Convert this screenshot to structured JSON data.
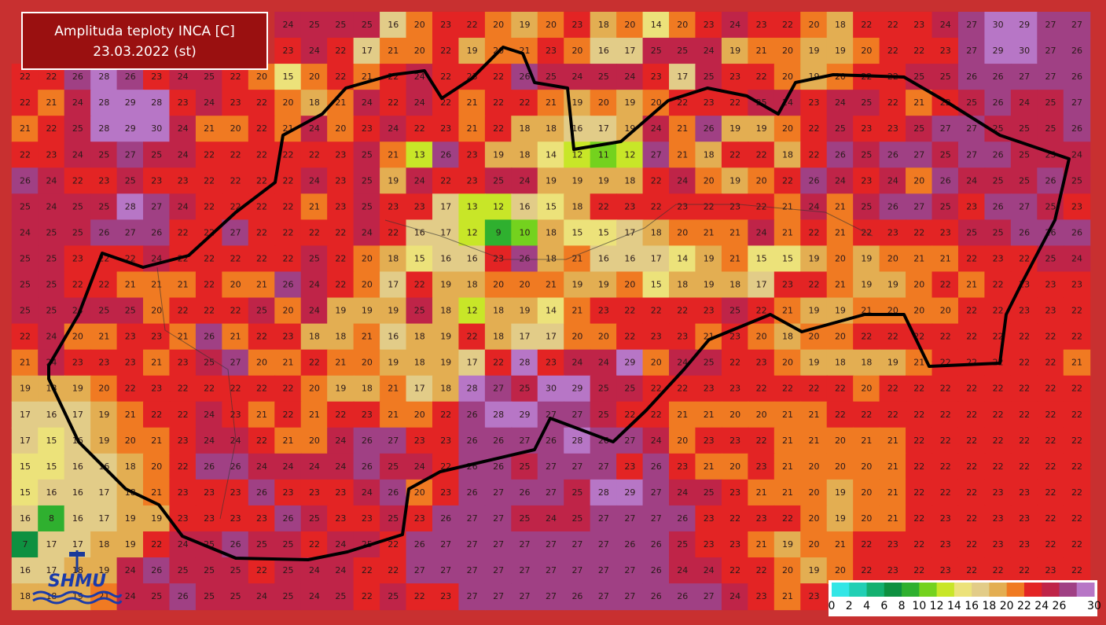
{
  "header": {
    "title": "Amplituda teploty INCA [C]",
    "date": "23.03.2022 (st)"
  },
  "logo": "SHMU",
  "grid": {
    "values": [
      [
        null,
        null,
        null,
        null,
        null,
        null,
        null,
        null,
        null,
        null,
        24,
        25,
        25,
        25,
        16,
        20,
        23,
        22,
        20,
        19,
        20,
        23,
        18,
        20,
        14,
        20,
        23,
        24,
        23,
        22,
        20,
        18,
        22,
        22,
        23,
        24,
        27,
        30,
        29,
        27,
        27
      ],
      [
        null,
        null,
        null,
        null,
        null,
        null,
        null,
        null,
        null,
        null,
        23,
        24,
        22,
        17,
        21,
        20,
        22,
        19,
        20,
        21,
        23,
        20,
        16,
        17,
        25,
        25,
        24,
        19,
        21,
        20,
        19,
        19,
        20,
        22,
        22,
        23,
        27,
        29,
        30,
        27,
        26
      ],
      [
        22,
        22,
        26,
        28,
        26,
        23,
        24,
        25,
        22,
        20,
        15,
        20,
        22,
        21,
        22,
        24,
        22,
        23,
        22,
        26,
        25,
        24,
        25,
        24,
        23,
        17,
        25,
        23,
        22,
        20,
        19,
        20,
        22,
        22,
        25,
        25,
        26,
        26,
        27,
        27,
        26
      ],
      [
        22,
        21,
        24,
        28,
        29,
        28,
        23,
        24,
        23,
        22,
        20,
        18,
        21,
        24,
        22,
        24,
        22,
        21,
        22,
        22,
        21,
        19,
        20,
        19,
        20,
        22,
        23,
        22,
        25,
        24,
        23,
        24,
        25,
        22,
        21,
        22,
        25,
        26,
        24,
        25,
        27
      ],
      [
        21,
        22,
        25,
        28,
        29,
        30,
        24,
        21,
        20,
        22,
        21,
        24,
        20,
        23,
        24,
        22,
        23,
        21,
        22,
        18,
        18,
        16,
        17,
        19,
        24,
        21,
        26,
        19,
        19,
        20,
        22,
        25,
        23,
        23,
        25,
        27,
        27,
        25,
        25,
        25,
        26
      ],
      [
        22,
        23,
        24,
        25,
        27,
        25,
        24,
        22,
        22,
        22,
        22,
        22,
        23,
        25,
        21,
        13,
        26,
        23,
        19,
        18,
        14,
        12,
        11,
        12,
        27,
        21,
        18,
        22,
        22,
        18,
        22,
        26,
        25,
        26,
        27,
        25,
        27,
        26,
        25,
        25,
        24
      ],
      [
        26,
        24,
        22,
        23,
        25,
        23,
        23,
        22,
        22,
        22,
        22,
        24,
        23,
        25,
        19,
        24,
        22,
        23,
        25,
        24,
        19,
        19,
        19,
        18,
        22,
        24,
        20,
        19,
        20,
        22,
        26,
        24,
        23,
        24,
        20,
        26,
        24,
        25,
        25,
        26,
        25
      ],
      [
        25,
        24,
        25,
        25,
        28,
        27,
        24,
        22,
        22,
        22,
        22,
        21,
        23,
        25,
        23,
        23,
        17,
        13,
        12,
        16,
        15,
        18,
        22,
        23,
        22,
        23,
        22,
        23,
        22,
        21,
        24,
        21,
        25,
        26,
        27,
        25,
        23,
        26,
        27,
        25,
        23
      ],
      [
        24,
        25,
        25,
        26,
        27,
        26,
        22,
        22,
        27,
        22,
        22,
        22,
        22,
        24,
        22,
        16,
        17,
        12,
        9,
        10,
        18,
        15,
        15,
        17,
        18,
        20,
        21,
        21,
        24,
        21,
        22,
        21,
        22,
        23,
        22,
        23,
        25,
        25,
        26,
        26,
        26
      ],
      [
        25,
        25,
        23,
        22,
        22,
        24,
        22,
        22,
        22,
        22,
        22,
        25,
        22,
        20,
        18,
        15,
        16,
        16,
        23,
        26,
        18,
        21,
        16,
        16,
        17,
        14,
        19,
        21,
        15,
        15,
        19,
        20,
        19,
        20,
        21,
        21,
        22,
        23,
        22,
        25,
        24
      ],
      [
        25,
        25,
        22,
        22,
        21,
        21,
        21,
        22,
        20,
        21,
        26,
        24,
        22,
        20,
        17,
        22,
        19,
        18,
        20,
        20,
        21,
        19,
        19,
        20,
        15,
        18,
        19,
        18,
        17,
        23,
        22,
        21,
        19,
        19,
        20,
        22,
        21,
        22,
        23,
        23,
        23
      ],
      [
        25,
        25,
        24,
        25,
        25,
        20,
        22,
        22,
        22,
        25,
        20,
        24,
        19,
        19,
        19,
        25,
        18,
        12,
        18,
        19,
        14,
        21,
        23,
        22,
        22,
        22,
        23,
        25,
        22,
        21,
        19,
        19,
        21,
        20,
        20,
        20,
        22,
        22,
        23,
        23,
        22
      ],
      [
        22,
        24,
        20,
        21,
        23,
        23,
        21,
        26,
        21,
        22,
        23,
        18,
        18,
        21,
        16,
        18,
        19,
        22,
        18,
        17,
        17,
        20,
        20,
        22,
        23,
        23,
        21,
        23,
        20,
        18,
        20,
        20,
        22,
        22,
        22,
        22,
        22,
        22,
        22,
        22,
        22
      ],
      [
        21,
        24,
        23,
        23,
        23,
        21,
        23,
        25,
        27,
        20,
        21,
        22,
        21,
        20,
        19,
        18,
        19,
        17,
        22,
        28,
        23,
        24,
        24,
        29,
        20,
        24,
        25,
        22,
        23,
        20,
        19,
        18,
        18,
        19,
        21,
        22,
        22,
        22,
        22,
        22,
        21
      ],
      [
        19,
        18,
        19,
        20,
        22,
        23,
        22,
        22,
        22,
        22,
        22,
        20,
        19,
        18,
        21,
        17,
        18,
        28,
        27,
        25,
        30,
        29,
        25,
        25,
        22,
        22,
        23,
        23,
        22,
        22,
        22,
        22,
        20,
        22,
        22,
        22,
        22,
        22,
        22,
        22,
        22
      ],
      [
        17,
        16,
        17,
        19,
        21,
        22,
        22,
        24,
        23,
        21,
        22,
        21,
        22,
        23,
        21,
        20,
        22,
        26,
        28,
        29,
        27,
        27,
        25,
        22,
        22,
        21,
        21,
        20,
        20,
        21,
        21,
        22,
        22,
        22,
        22,
        22,
        22,
        22,
        22,
        22,
        22
      ],
      [
        17,
        15,
        16,
        19,
        20,
        21,
        23,
        24,
        24,
        22,
        21,
        20,
        24,
        26,
        27,
        23,
        23,
        26,
        26,
        27,
        26,
        28,
        26,
        27,
        24,
        20,
        23,
        23,
        22,
        21,
        21,
        20,
        21,
        21,
        22,
        22,
        22,
        22,
        22,
        22,
        22
      ],
      [
        15,
        15,
        16,
        16,
        18,
        20,
        22,
        26,
        26,
        24,
        24,
        24,
        24,
        26,
        25,
        24,
        22,
        26,
        26,
        25,
        27,
        27,
        27,
        23,
        26,
        23,
        21,
        20,
        23,
        21,
        20,
        20,
        20,
        21,
        22,
        22,
        22,
        22,
        22,
        22,
        22
      ],
      [
        15,
        16,
        16,
        17,
        18,
        21,
        23,
        23,
        23,
        26,
        23,
        23,
        23,
        24,
        26,
        20,
        23,
        26,
        27,
        26,
        27,
        25,
        28,
        29,
        27,
        24,
        25,
        23,
        21,
        21,
        20,
        19,
        20,
        21,
        22,
        22,
        22,
        23,
        23,
        22,
        22
      ],
      [
        16,
        8,
        16,
        17,
        19,
        19,
        23,
        23,
        23,
        23,
        26,
        25,
        23,
        23,
        25,
        23,
        26,
        27,
        27,
        25,
        24,
        25,
        27,
        27,
        27,
        26,
        23,
        22,
        23,
        22,
        20,
        19,
        20,
        21,
        22,
        23,
        22,
        23,
        23,
        22,
        22
      ],
      [
        7,
        17,
        17,
        18,
        19,
        22,
        24,
        25,
        26,
        25,
        25,
        22,
        24,
        25,
        22,
        26,
        27,
        27,
        27,
        27,
        27,
        27,
        27,
        26,
        26,
        25,
        23,
        23,
        21,
        19,
        20,
        21,
        22,
        23,
        22,
        23,
        22,
        23,
        23,
        22,
        22
      ],
      [
        16,
        17,
        18,
        19,
        24,
        26,
        25,
        25,
        25,
        22,
        25,
        24,
        24,
        22,
        22,
        27,
        27,
        27,
        27,
        27,
        27,
        27,
        27,
        27,
        26,
        24,
        24,
        22,
        22,
        20,
        19,
        20,
        22,
        23,
        22,
        23,
        22,
        22,
        22,
        23,
        22
      ],
      [
        18,
        18,
        19,
        21,
        24,
        25,
        26,
        25,
        25,
        24,
        25,
        24,
        25,
        22,
        25,
        22,
        23,
        27,
        27,
        27,
        27,
        26,
        27,
        27,
        26,
        26,
        27,
        24,
        23,
        21,
        23,
        null,
        null,
        null,
        null,
        null,
        null,
        null,
        null,
        null,
        null
      ]
    ]
  },
  "legend": {
    "labels": [
      0,
      2,
      4,
      6,
      8,
      10,
      12,
      14,
      16,
      18,
      20,
      22,
      24,
      26,
      30
    ],
    "colors": [
      "#33e6e6",
      "#22cfb4",
      "#14b070",
      "#0e9040",
      "#2fb02f",
      "#74d21e",
      "#c8e628",
      "#ece27a",
      "#e2cc88",
      "#e3ae52",
      "#f07a22",
      "#e32424",
      "#bf2448",
      "#a04084",
      "#b776c6"
    ]
  }
}
